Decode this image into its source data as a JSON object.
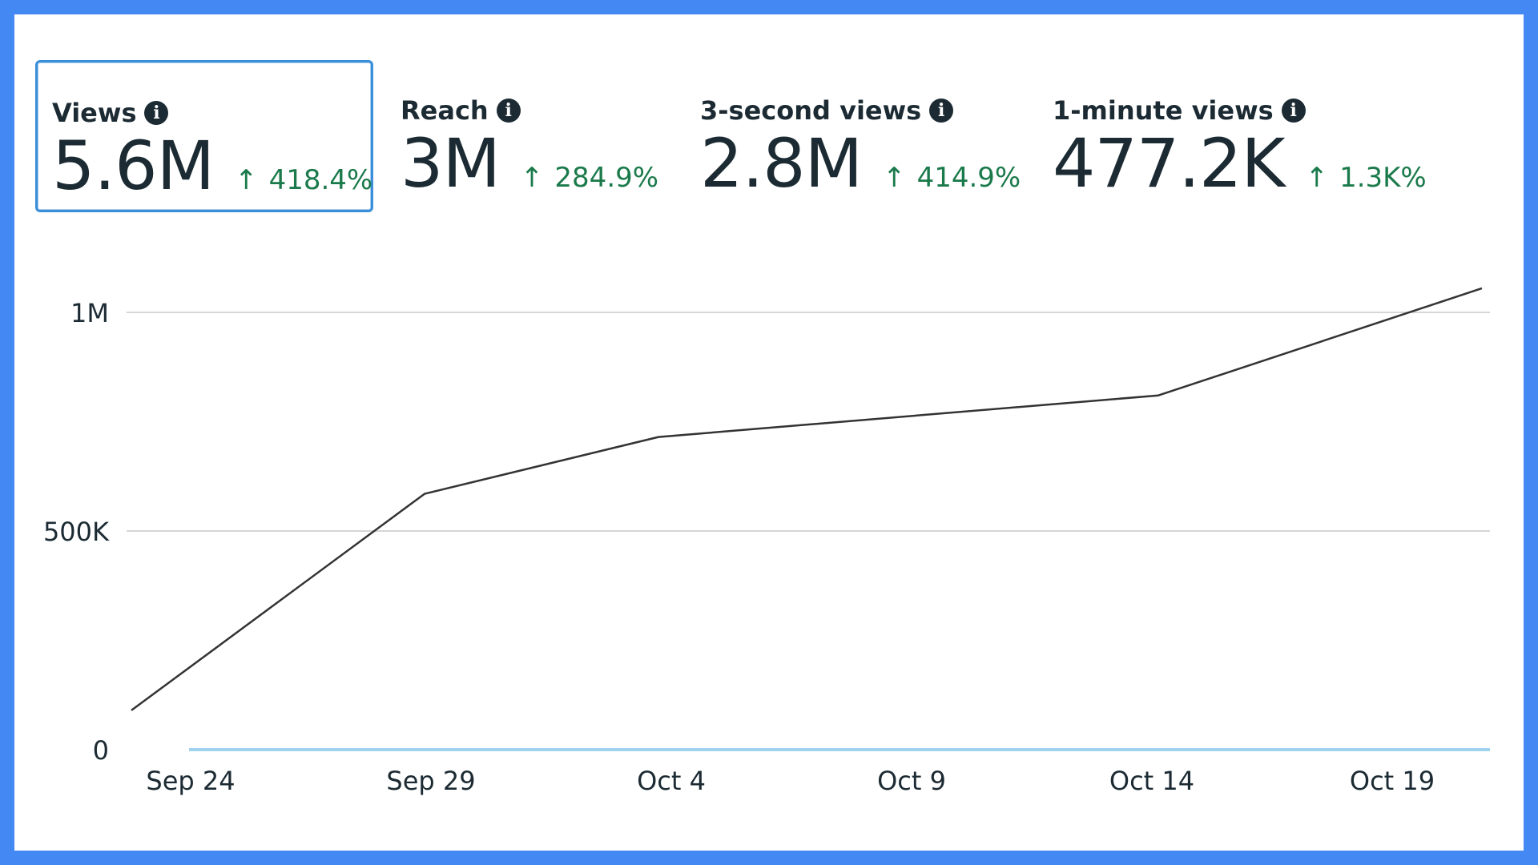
{
  "metrics": [
    {
      "label": "Views",
      "value": "5.6M",
      "change": "418.4%",
      "selected": true
    },
    {
      "label": "Reach",
      "value": "3M",
      "change": "284.9%",
      "selected": false
    },
    {
      "label": "3-second views",
      "value": "2.8M",
      "change": "414.9%",
      "selected": false
    },
    {
      "label": "1-minute views",
      "value": "477.2K",
      "change": "1.3K%",
      "selected": false
    }
  ],
  "icons": {
    "info": "info-icon",
    "trend_up": "arrow-up-icon"
  },
  "colors": {
    "frame_border": "#4488f4",
    "selected_border": "#3a8fd8",
    "positive_change": "#1b7a4b",
    "line": "#333333",
    "baseline": "#9fd3f0",
    "grid": "#c8c8c8",
    "text": "#1c2b33"
  },
  "chart_data": {
    "type": "line",
    "x": [
      "Sep 23",
      "Sep 29",
      "Oct 3",
      "Oct 14",
      "Oct 21"
    ],
    "series": [
      {
        "values": [
          90000,
          585000,
          715000,
          810000,
          1055000
        ]
      }
    ],
    "x_tick_labels": [
      "Sep 24",
      "Sep 29",
      "Oct 4",
      "Oct 9",
      "Oct 14",
      "Oct 19"
    ],
    "y_tick_labels": [
      "0",
      "500K",
      "1M"
    ],
    "y_ticks": [
      0,
      500000,
      1000000
    ],
    "ylim": [
      0,
      1000000
    ],
    "x_start": "Sep 23",
    "grid": true,
    "legend": "none"
  }
}
